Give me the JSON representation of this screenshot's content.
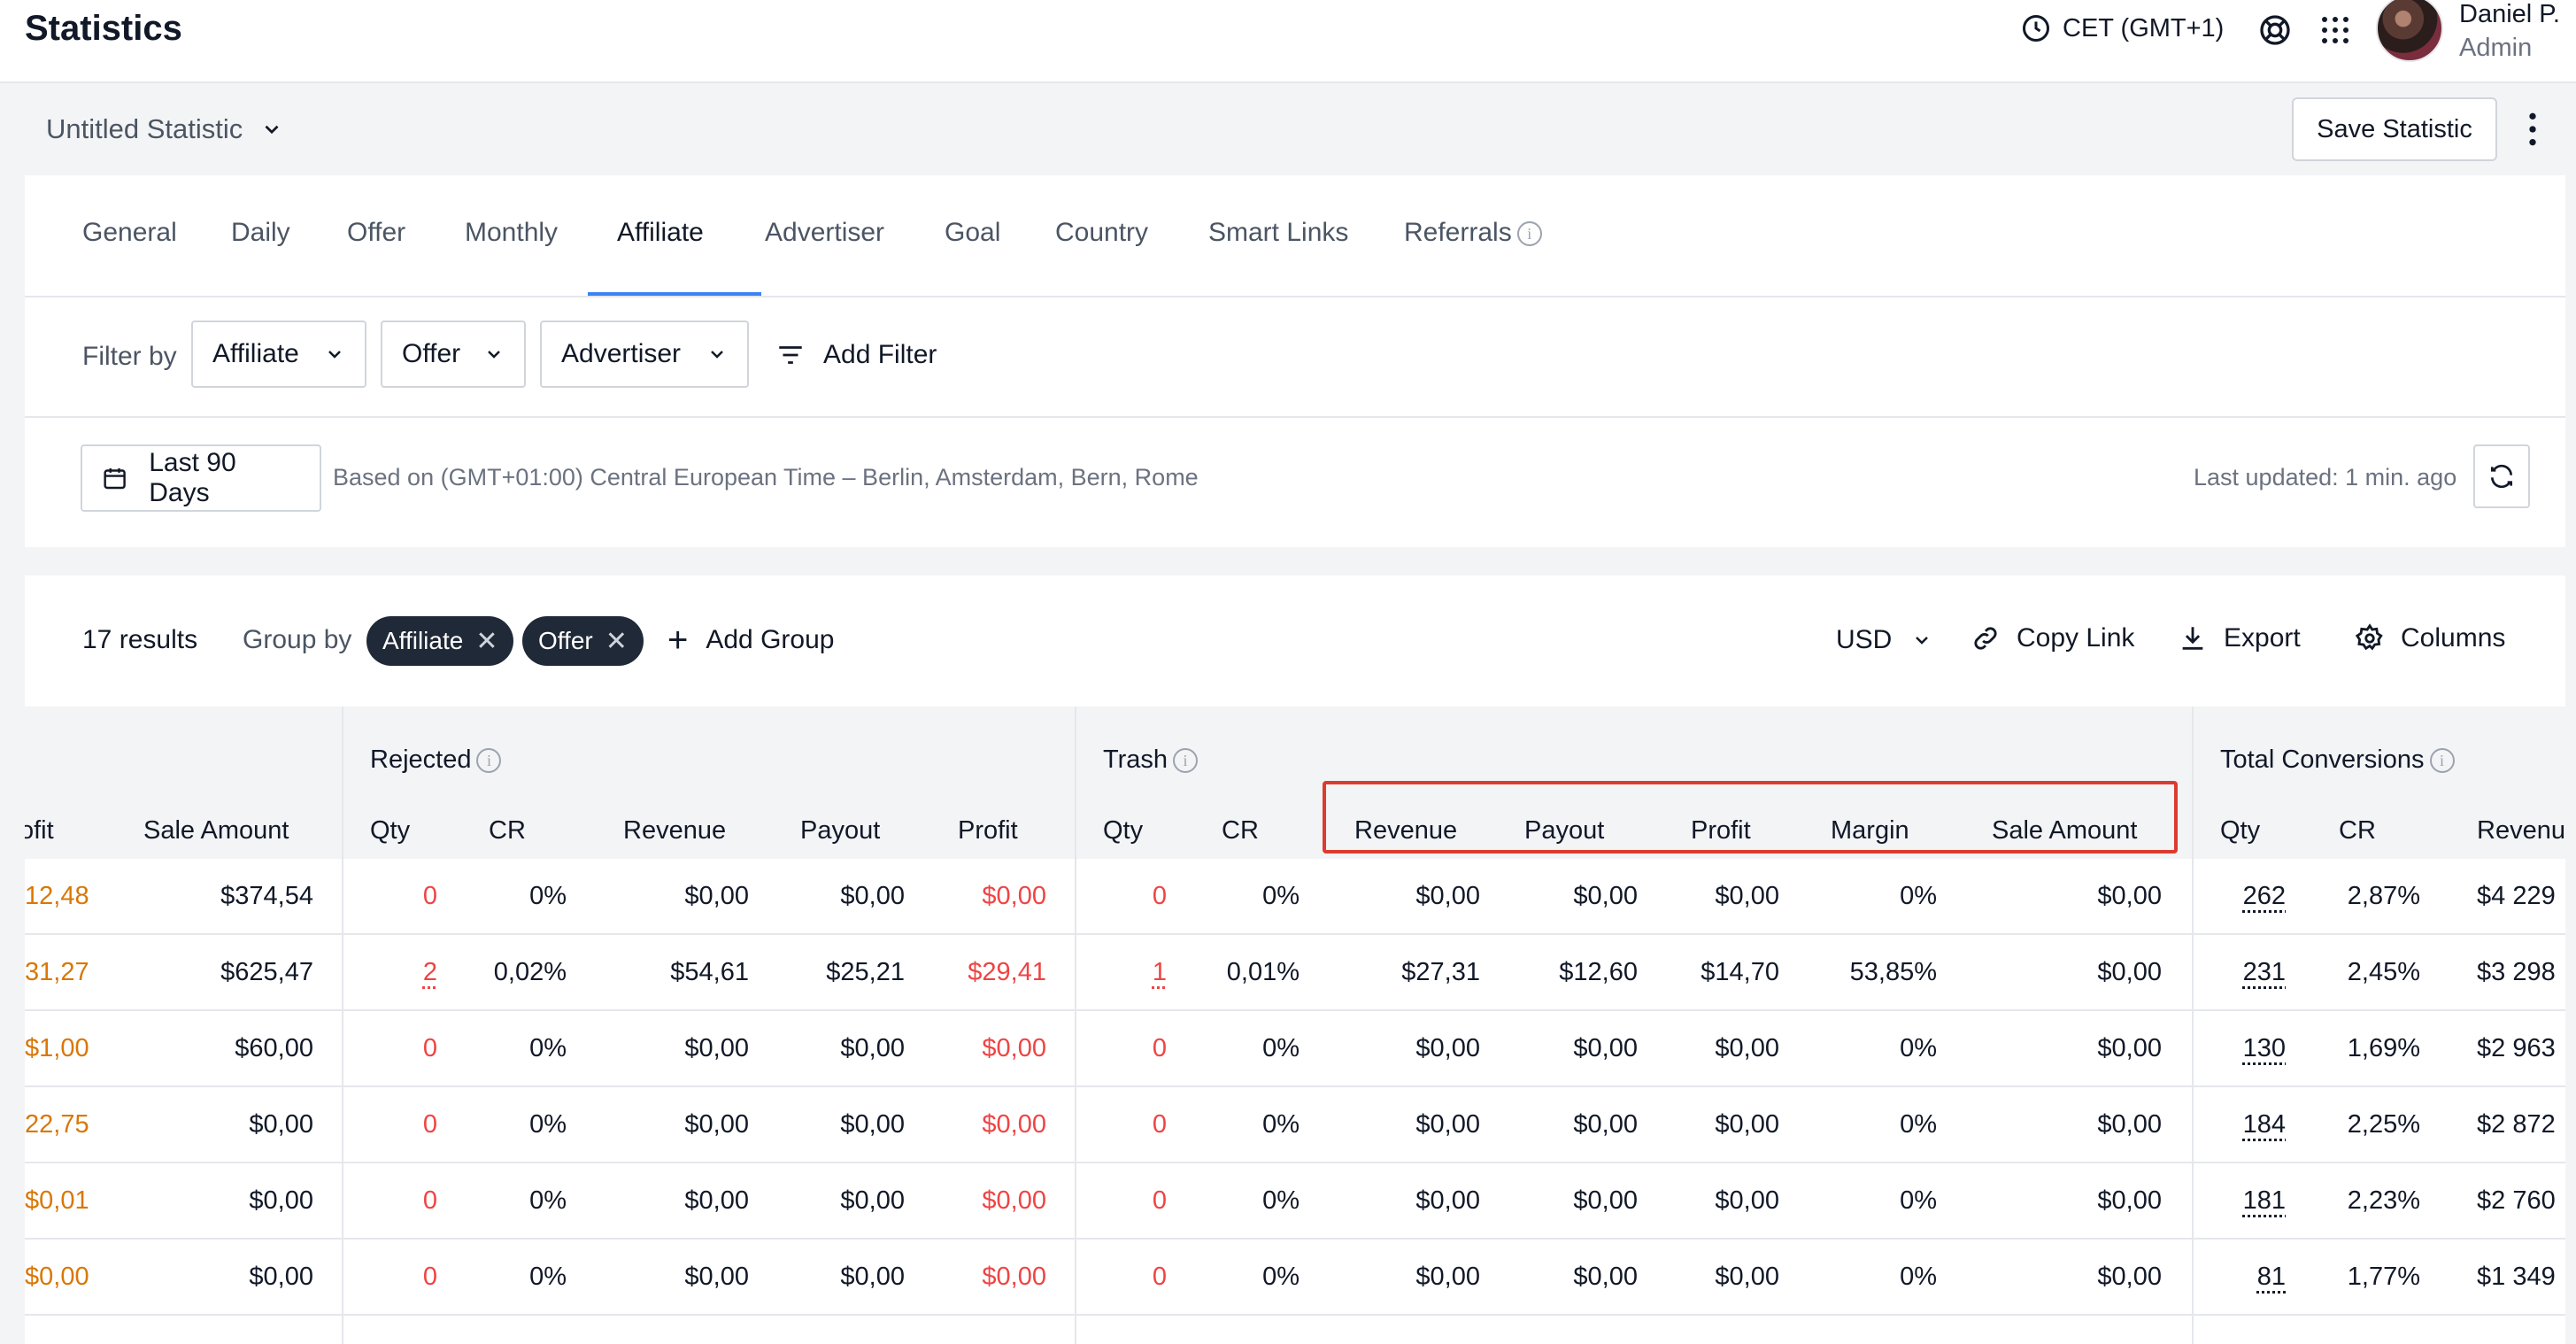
{
  "header": {
    "title": "Statistics",
    "timezone": "CET (GMT+1)",
    "user": {
      "name": "Daniel P.",
      "role": "Admin"
    }
  },
  "statistic": {
    "name": "Untitled Statistic",
    "save_label": "Save Statistic"
  },
  "tabs": [
    {
      "label": "General"
    },
    {
      "label": "Daily"
    },
    {
      "label": "Offer"
    },
    {
      "label": "Monthly"
    },
    {
      "label": "Affiliate",
      "active": true
    },
    {
      "label": "Advertiser"
    },
    {
      "label": "Goal"
    },
    {
      "label": "Country"
    },
    {
      "label": "Smart Links"
    },
    {
      "label": "Referrals"
    }
  ],
  "filters": {
    "label": "Filter by",
    "dropdowns": [
      "Affiliate",
      "Offer",
      "Advertiser"
    ],
    "add_label": "Add Filter"
  },
  "date": {
    "range_label": "Last 90 Days",
    "timezone_note": "Based on (GMT+01:00) Central European Time – Berlin, Amsterdam, Bern, Rome",
    "last_updated": "Last updated: 1 min. ago"
  },
  "results": {
    "count": "17  results",
    "group_by_label": "Group by",
    "groups": [
      "Affiliate",
      "Offer"
    ],
    "add_group_label": "Add Group",
    "currency": "USD",
    "copy_link_label": "Copy Link",
    "export_label": "Export",
    "columns_label": "Columns"
  },
  "table": {
    "groups": [
      "Rejected",
      "Trash",
      "Total Conversions"
    ],
    "columns": [
      "ofit",
      "Sale Amount",
      "Qty",
      "CR",
      "Revenue",
      "Payout",
      "Profit",
      "Qty",
      "CR",
      "Revenue",
      "Payout",
      "Profit",
      "Margin",
      "Sale Amount",
      "Qty",
      "CR",
      "Revenu"
    ],
    "rows": [
      [
        "12,48",
        "$374,54",
        "0",
        "0%",
        "$0,00",
        "$0,00",
        "$0,00",
        "0",
        "0%",
        "$0,00",
        "$0,00",
        "$0,00",
        "0%",
        "$0,00",
        "262",
        "2,87%",
        "$4 229"
      ],
      [
        "31,27",
        "$625,47",
        "2",
        "0,02%",
        "$54,61",
        "$25,21",
        "$29,41",
        "1",
        "0,01%",
        "$27,31",
        "$12,60",
        "$14,70",
        "53,85%",
        "$0,00",
        "231",
        "2,45%",
        "$3 298"
      ],
      [
        "$1,00",
        "$60,00",
        "0",
        "0%",
        "$0,00",
        "$0,00",
        "$0,00",
        "0",
        "0%",
        "$0,00",
        "$0,00",
        "$0,00",
        "0%",
        "$0,00",
        "130",
        "1,69%",
        "$2 963"
      ],
      [
        "22,75",
        "$0,00",
        "0",
        "0%",
        "$0,00",
        "$0,00",
        "$0,00",
        "0",
        "0%",
        "$0,00",
        "$0,00",
        "$0,00",
        "0%",
        "$0,00",
        "184",
        "2,25%",
        "$2 872"
      ],
      [
        "$0,01",
        "$0,00",
        "0",
        "0%",
        "$0,00",
        "$0,00",
        "$0,00",
        "0",
        "0%",
        "$0,00",
        "$0,00",
        "$0,00",
        "0%",
        "$0,00",
        "181",
        "2,23%",
        "$2 760"
      ],
      [
        "$0,00",
        "$0,00",
        "0",
        "0%",
        "$0,00",
        "$0,00",
        "$0,00",
        "0",
        "0%",
        "$0,00",
        "$0,00",
        "$0,00",
        "0%",
        "$0,00",
        "81",
        "1,77%",
        "$1 349"
      ]
    ]
  },
  "colors": {
    "accent": "#3b82f6",
    "orange": "#d97706",
    "red": "#ef4444",
    "highlight": "#dc3b2f"
  }
}
